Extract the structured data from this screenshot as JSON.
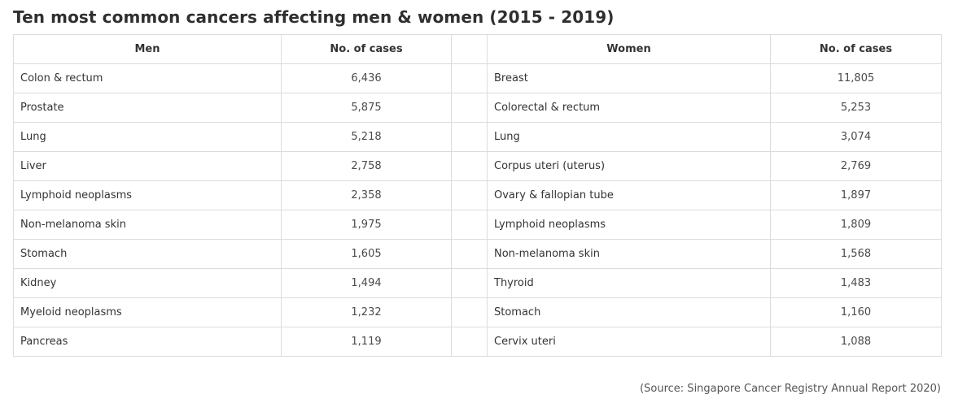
{
  "title": "Ten most common cancers affecting men & women (2015 - 2019)",
  "table": {
    "headers": [
      "Men",
      "No. of cases",
      "",
      "Women",
      "No. of cases"
    ],
    "rows": [
      {
        "men": "Colon & rectum",
        "men_cases": "6,436",
        "women": "Breast",
        "women_cases": "11,805"
      },
      {
        "men": "Prostate",
        "men_cases": "5,875",
        "women": "Colorectal & rectum",
        "women_cases": "5,253"
      },
      {
        "men": "Lung",
        "men_cases": "5,218",
        "women": "Lung",
        "women_cases": "3,074"
      },
      {
        "men": "Liver",
        "men_cases": "2,758",
        "women": "Corpus uteri (uterus)",
        "women_cases": "2,769"
      },
      {
        "men": "Lymphoid neoplasms",
        "men_cases": "2,358",
        "women": "Ovary & fallopian tube",
        "women_cases": "1,897"
      },
      {
        "men": "Non-melanoma skin",
        "men_cases": "1,975",
        "women": "Lymphoid neoplasms",
        "women_cases": "1,809"
      },
      {
        "men": "Stomach",
        "men_cases": "1,605",
        "women": "Non-melanoma skin",
        "women_cases": "1,568"
      },
      {
        "men": "Kidney",
        "men_cases": "1,494",
        "women": "Thyroid",
        "women_cases": "1,483"
      },
      {
        "men": "Myeloid neoplasms",
        "men_cases": "1,232",
        "women": "Stomach",
        "women_cases": "1,160"
      },
      {
        "men": "Pancreas",
        "men_cases": "1,119",
        "women": "Cervix uteri",
        "women_cases": "1,088"
      }
    ]
  },
  "source": "(Source: Singapore Cancer Registry Annual Report 2020)"
}
